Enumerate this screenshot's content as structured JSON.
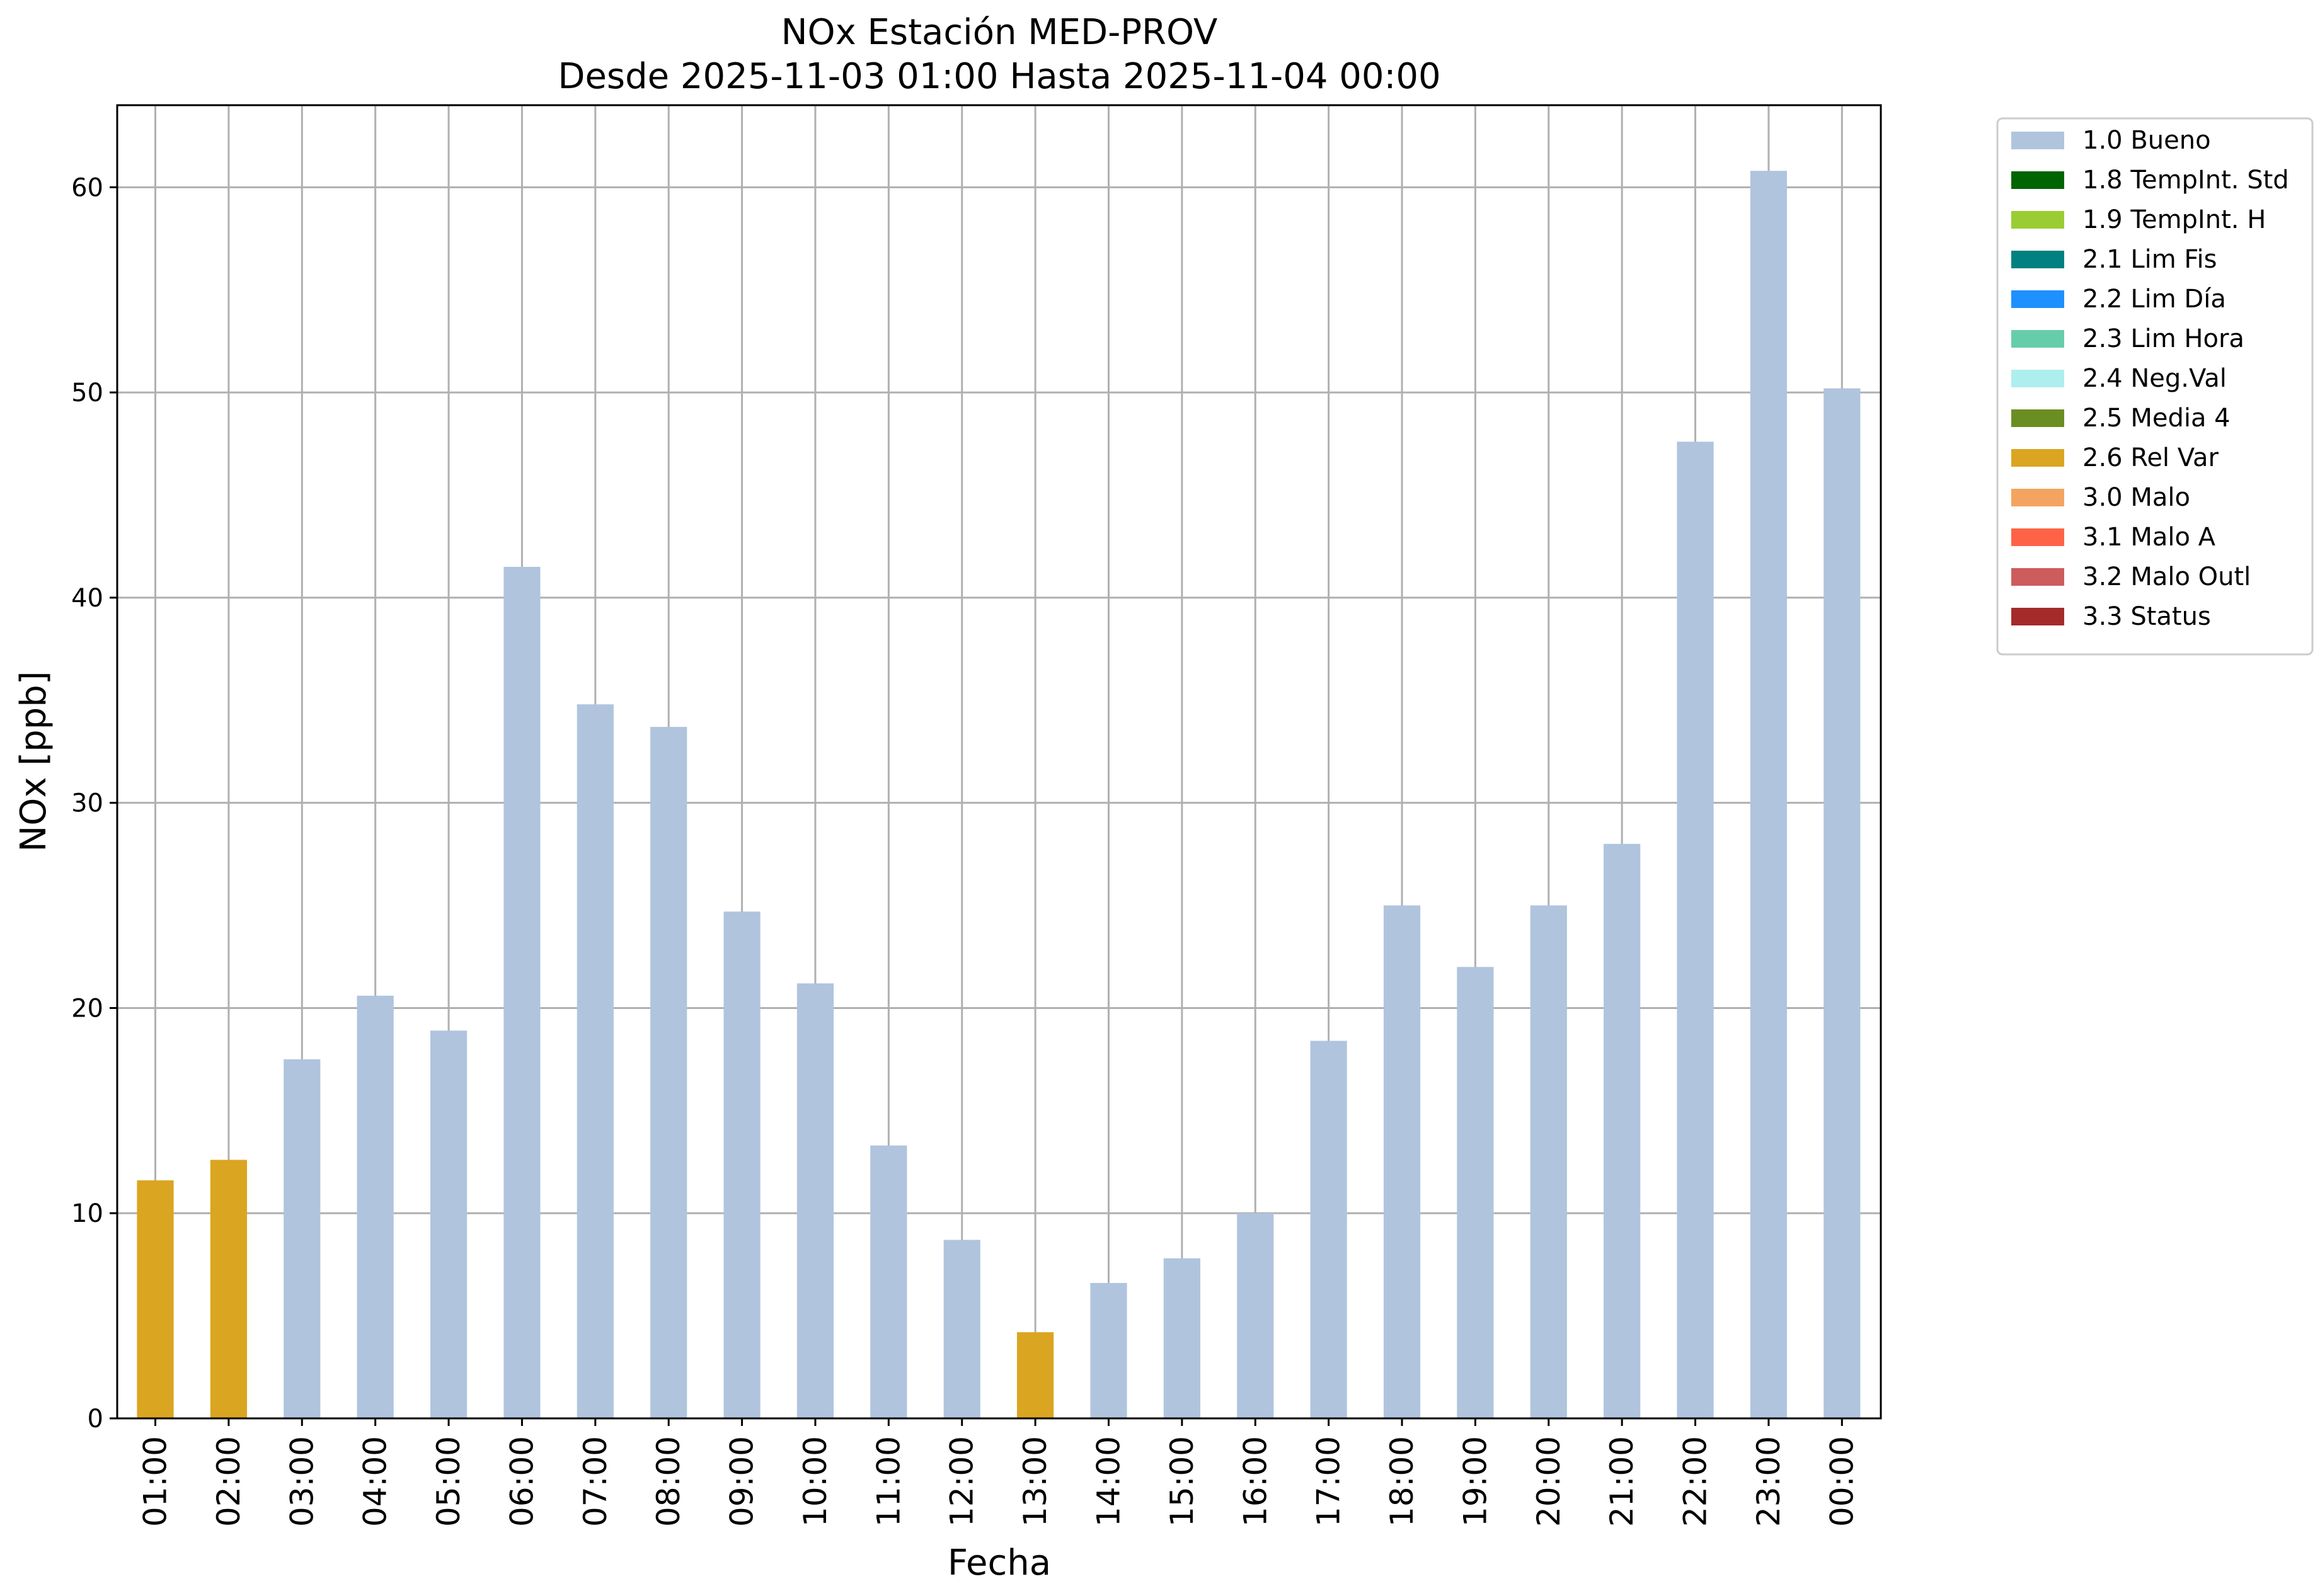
{
  "chart_data": {
    "type": "bar",
    "title": "NOx Estación MED-PROV",
    "subtitle": "Desde 2025-11-03 01:00 Hasta 2025-11-04 00:00",
    "xlabel": "Fecha",
    "ylabel": "NOx [ppb]",
    "ylim": [
      0,
      64
    ],
    "yticks": [
      0,
      10,
      20,
      30,
      40,
      50,
      60
    ],
    "grid": true,
    "legend_position": "outside-right",
    "categories": [
      "01:00",
      "02:00",
      "03:00",
      "04:00",
      "05:00",
      "06:00",
      "07:00",
      "08:00",
      "09:00",
      "10:00",
      "11:00",
      "12:00",
      "13:00",
      "14:00",
      "15:00",
      "16:00",
      "17:00",
      "18:00",
      "19:00",
      "20:00",
      "21:00",
      "22:00",
      "23:00",
      "00:00"
    ],
    "values": [
      11.6,
      12.6,
      17.5,
      20.6,
      18.9,
      41.5,
      34.8,
      33.7,
      24.7,
      21.2,
      13.3,
      8.7,
      4.2,
      6.6,
      7.8,
      10.0,
      18.4,
      25.0,
      22.0,
      25.0,
      28.0,
      47.6,
      60.8,
      50.2
    ],
    "flags": [
      "2.6 Rel Var",
      "2.6 Rel Var",
      "1.0 Bueno",
      "1.0 Bueno",
      "1.0 Bueno",
      "1.0 Bueno",
      "1.0 Bueno",
      "1.0 Bueno",
      "1.0 Bueno",
      "1.0 Bueno",
      "1.0 Bueno",
      "1.0 Bueno",
      "2.6 Rel Var",
      "1.0 Bueno",
      "1.0 Bueno",
      "1.0 Bueno",
      "1.0 Bueno",
      "1.0 Bueno",
      "1.0 Bueno",
      "1.0 Bueno",
      "1.0 Bueno",
      "1.0 Bueno",
      "1.0 Bueno",
      "1.0 Bueno"
    ],
    "legend": [
      {
        "label": "1.0 Bueno",
        "color": "#b0c4de"
      },
      {
        "label": "1.8 TempInt. Std",
        "color": "#006400"
      },
      {
        "label": "1.9 TempInt. H",
        "color": "#9acd32"
      },
      {
        "label": "2.1 Lim Fis",
        "color": "#008080"
      },
      {
        "label": "2.2 Lim Día",
        "color": "#1e90ff"
      },
      {
        "label": "2.3 Lim Hora",
        "color": "#66cdaa"
      },
      {
        "label": "2.4 Neg.Val",
        "color": "#afeeee"
      },
      {
        "label": "2.5 Media 4",
        "color": "#6b8e23"
      },
      {
        "label": "2.6 Rel Var",
        "color": "#daa520"
      },
      {
        "label": "3.0 Malo",
        "color": "#f4a460"
      },
      {
        "label": "3.1 Malo A",
        "color": "#ff6347"
      },
      {
        "label": "3.2 Malo Outl",
        "color": "#cd5c5c"
      },
      {
        "label": "3.3 Status",
        "color": "#a52a2a"
      }
    ]
  }
}
